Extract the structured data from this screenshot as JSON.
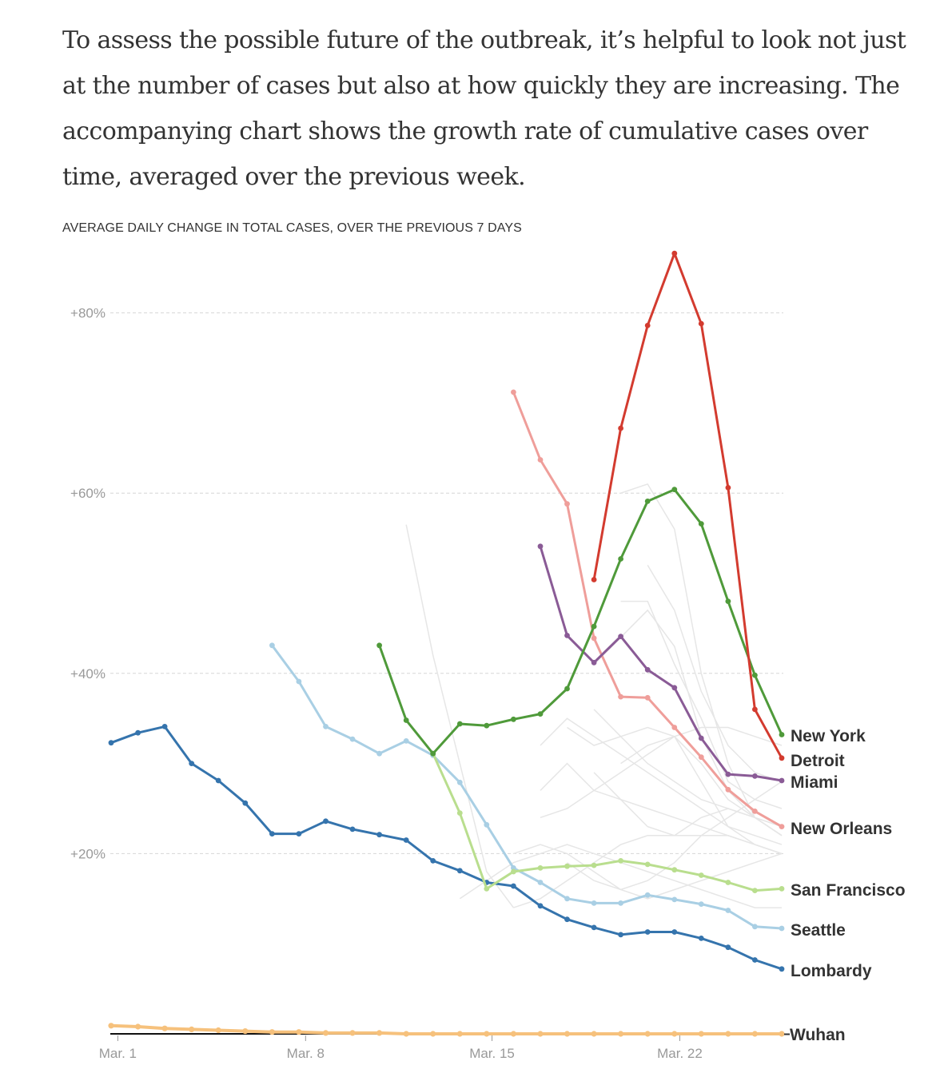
{
  "intro_text": "To assess the possible future of the outbreak, it’s helpful to look not just at the number of cases but also at how quickly they are increasing. The accompanying chart shows the growth rate of cumulative cases over time, averaged over the previous week.",
  "chart_data": {
    "type": "line",
    "title": "AVERAGE DAILY CHANGE IN TOTAL CASES, OVER THE PREVIOUS 7 DAYS",
    "xlabel": "",
    "ylabel": "",
    "x_start_date": "Feb. 29",
    "x_days": 26,
    "x_ticks": [
      {
        "day": 0.25,
        "label": "Mar. 1"
      },
      {
        "day": 7.25,
        "label": "Mar. 8"
      },
      {
        "day": 14.2,
        "label": "Mar. 15"
      },
      {
        "day": 21.2,
        "label": "Mar. 22"
      }
    ],
    "y_ticks": [
      {
        "value": 20,
        "label": "+20%"
      },
      {
        "value": 40,
        "label": "+40%"
      },
      {
        "value": 60,
        "label": "+60%"
      },
      {
        "value": 80,
        "label": "+80%"
      }
    ],
    "ylim": [
      0,
      87
    ],
    "grid": "horizontal-dashed",
    "legend": "direct labels at right end of lines",
    "series": [
      {
        "name": "Lombardy",
        "color": "#3574ad",
        "start": 0,
        "values": [
          32.3,
          33.4,
          34.1,
          30.0,
          28.1,
          25.6,
          22.2,
          22.2,
          23.6,
          22.7,
          22.1,
          21.5,
          19.2,
          18.1,
          16.8,
          16.4,
          14.2,
          12.7,
          11.8,
          11.0,
          11.3,
          11.3,
          10.6,
          9.6,
          8.2,
          7.2
        ]
      },
      {
        "name": "Seattle",
        "color": "#a9cfe4",
        "start": 6,
        "values": [
          43.1,
          39.1,
          34.1,
          32.7,
          31.1,
          32.5,
          30.9,
          27.9,
          23.2,
          18.4,
          16.8,
          15.0,
          14.5,
          14.5,
          15.4,
          14.9,
          14.4,
          13.7,
          11.9,
          11.7
        ]
      },
      {
        "name": "San Francisco",
        "color": "#b9de8e",
        "start": 12,
        "values": [
          31.1,
          24.5,
          16.1,
          18.0,
          18.4,
          18.6,
          18.7,
          19.2,
          18.8,
          18.2,
          17.6,
          16.8,
          15.9,
          16.1
        ]
      },
      {
        "name": "New York",
        "color": "#4f9a3a",
        "start": 10,
        "values": [
          43.1,
          34.8,
          31.1,
          34.4,
          34.2,
          34.9,
          35.5,
          38.3,
          45.2,
          52.7,
          59.1,
          60.4,
          56.6,
          48.0,
          39.8,
          33.2
        ]
      },
      {
        "name": "New Orleans",
        "color": "#ef9e9a",
        "start": 15,
        "values": [
          71.2,
          63.7,
          58.8,
          43.9,
          37.4,
          37.3,
          34.0,
          30.7,
          27.1,
          24.7,
          23.0
        ]
      },
      {
        "name": "Miami",
        "color": "#8a5b96",
        "start": 16,
        "values": [
          54.1,
          44.2,
          41.2,
          44.1,
          40.4,
          38.4,
          32.8,
          28.8,
          28.6,
          28.1
        ]
      },
      {
        "name": "Detroit",
        "color": "#d33b2f",
        "start": 18,
        "values": [
          50.4,
          67.2,
          78.6,
          86.6,
          78.8,
          60.6,
          36.0,
          30.6
        ]
      },
      {
        "name": "Wuhan",
        "color": "#f6c17c",
        "start": 0,
        "values": [
          0.9,
          0.8,
          0.6,
          0.5,
          0.4,
          0.3,
          0.2,
          0.2,
          0.1,
          0.1,
          0.1,
          0,
          0,
          0,
          0,
          0,
          0,
          0,
          0,
          0,
          0,
          0,
          0,
          0,
          0,
          0
        ]
      }
    ],
    "background_series_color": "#e6e6e6",
    "background_series": [
      {
        "start": 11,
        "values": [
          56.5,
          42,
          30,
          18,
          14
        ]
      },
      {
        "start": 16,
        "values": [
          32,
          35,
          33,
          31,
          29,
          27,
          25,
          23,
          22,
          21
        ]
      },
      {
        "start": 16,
        "values": [
          27,
          30,
          27,
          26,
          25,
          24,
          23,
          22,
          21,
          20
        ]
      },
      {
        "start": 17,
        "values": [
          34,
          32,
          33,
          34,
          33,
          30,
          26,
          24,
          23
        ]
      },
      {
        "start": 18,
        "values": [
          29,
          26,
          23,
          22,
          24,
          25,
          24,
          23
        ]
      },
      {
        "start": 19,
        "values": [
          60,
          61,
          56,
          40,
          30,
          24,
          22
        ]
      },
      {
        "start": 19,
        "values": [
          48,
          48,
          41,
          35,
          28,
          26,
          25
        ]
      },
      {
        "start": 18,
        "values": [
          41,
          44,
          47,
          43,
          33,
          27,
          24,
          22
        ]
      },
      {
        "start": 19,
        "values": [
          30,
          32,
          33,
          28,
          23,
          21,
          20
        ]
      },
      {
        "start": 15,
        "values": [
          20,
          21,
          20,
          18,
          16,
          15,
          16,
          17,
          18,
          19,
          20
        ]
      },
      {
        "start": 13,
        "values": [
          15,
          17,
          19,
          20,
          21,
          20,
          19,
          18,
          17,
          16,
          15,
          14,
          14
        ]
      },
      {
        "start": 17,
        "values": [
          19,
          17,
          16,
          17,
          19,
          22,
          24,
          26,
          28
        ]
      },
      {
        "start": 15,
        "values": [
          14,
          15,
          17,
          19,
          21,
          22,
          22,
          22,
          22,
          21,
          20
        ]
      },
      {
        "start": 20,
        "values": [
          52,
          47,
          38,
          32,
          29,
          28
        ]
      },
      {
        "start": 18,
        "values": [
          36,
          33,
          30,
          28,
          26,
          25,
          24,
          22
        ]
      },
      {
        "start": 16,
        "values": [
          24,
          25,
          27,
          29,
          31,
          33,
          34,
          34,
          33,
          32
        ]
      }
    ]
  }
}
